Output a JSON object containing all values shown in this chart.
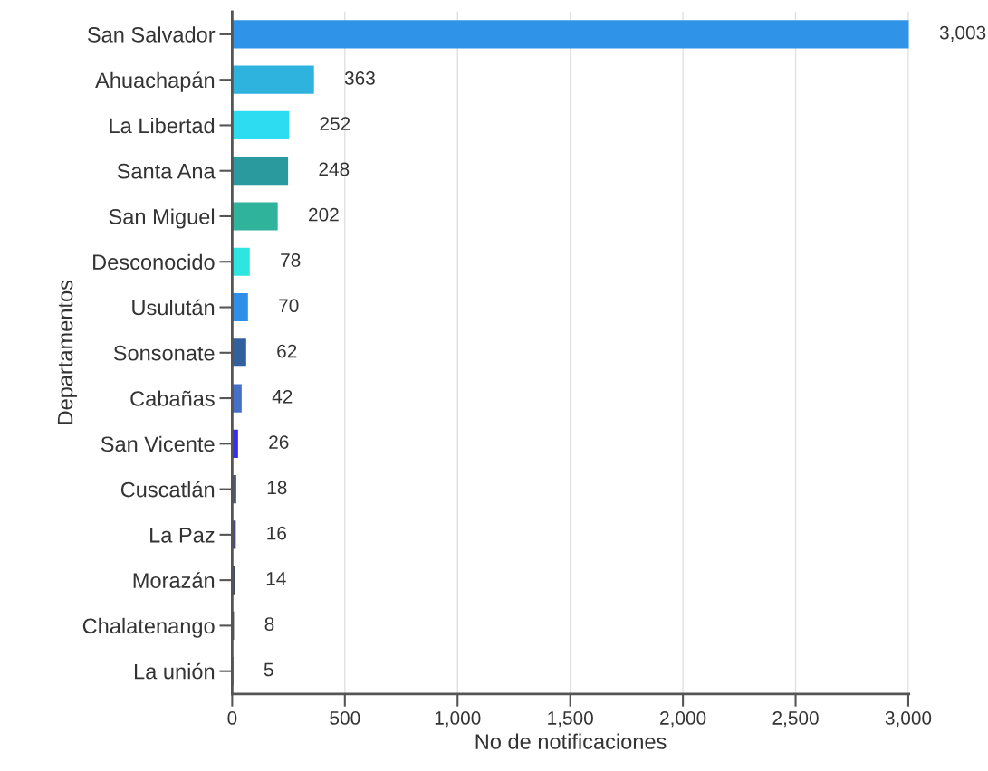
{
  "chart_data": {
    "type": "bar",
    "orientation": "horizontal",
    "xlabel": "No de notificaciones",
    "ylabel": "Departamentos",
    "categories": [
      "San Salvador",
      "Ahuachapán",
      "La Libertad",
      "Santa Ana",
      "San Miguel",
      "Desconocido",
      "Usulután",
      "Sonsonate",
      "Cabañas",
      "San Vicente",
      "Cuscatlán",
      "La Paz",
      "Morazán",
      "Chalatenango",
      "La unión"
    ],
    "values": [
      3003,
      363,
      252,
      248,
      202,
      78,
      70,
      62,
      42,
      26,
      18,
      16,
      14,
      8,
      5
    ],
    "value_labels": [
      "3,003",
      "363",
      "252",
      "248",
      "202",
      "78",
      "70",
      "62",
      "42",
      "26",
      "18",
      "16",
      "14",
      "8",
      "5"
    ],
    "colors": [
      "#2f93e8",
      "#2eb2de",
      "#2edcf2",
      "#2a9a9e",
      "#2fb39a",
      "#2ee6e0",
      "#2f8ee8",
      "#325f9e",
      "#4470c8",
      "#3a2ee8",
      "#505870",
      "#4a4a7a",
      "#404a5a",
      "#404040",
      "#404040"
    ],
    "xlim": [
      0,
      3003
    ],
    "xticks": [
      0,
      500,
      {
        "value": 1000,
        "label": "1,000"
      },
      {
        "value": 1500,
        "label": "1,500"
      },
      {
        "value": 2000,
        "label": "2,000"
      },
      {
        "value": 2500,
        "label": "2,500"
      },
      {
        "value": 3000,
        "label": "3,000"
      }
    ],
    "grid": "x"
  }
}
